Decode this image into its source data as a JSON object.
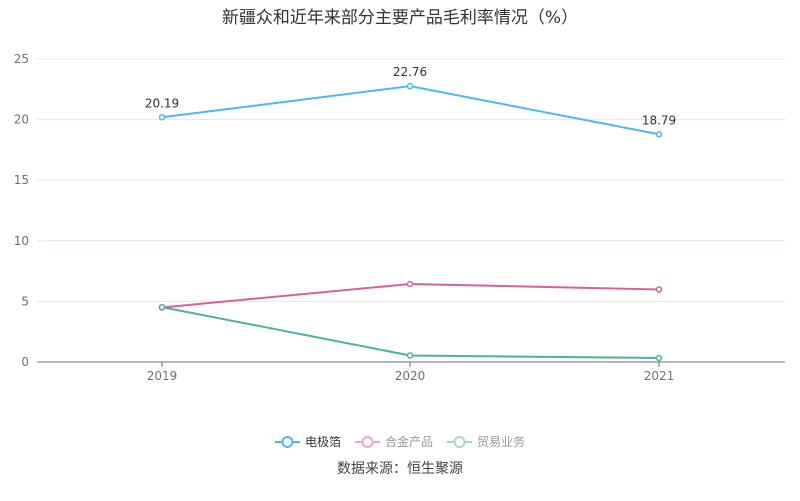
{
  "chart_data": {
    "type": "line",
    "title": "新疆众和近年来部分主要产品毛利率情况（%）",
    "categories": [
      "2019",
      "2020",
      "2021"
    ],
    "ylim": [
      0,
      25
    ],
    "yticks": [
      0,
      5,
      10,
      15,
      20,
      25
    ],
    "grid": true,
    "legend_position": "bottom",
    "series": [
      {
        "name": "电极箔",
        "color": "#4db8f0",
        "values": [
          20.19,
          22.76,
          18.79
        ],
        "labels": [
          "20.19",
          "22.76",
          "18.79"
        ],
        "legend_text_color": "#333333",
        "legend_line_color": "#4db8f0"
      },
      {
        "name": "合金产品",
        "color": "#d9609f",
        "values": [
          4.5,
          6.44,
          5.98
        ],
        "legend_text_color": "#999999",
        "legend_line_color": "#eba6cc"
      },
      {
        "name": "贸易业务",
        "color": "#4bb39a",
        "values": [
          4.53,
          0.54,
          0.33
        ],
        "legend_text_color": "#999999",
        "legend_line_color": "#a3d9cb"
      }
    ]
  },
  "source": "数据来源：恒生聚源"
}
